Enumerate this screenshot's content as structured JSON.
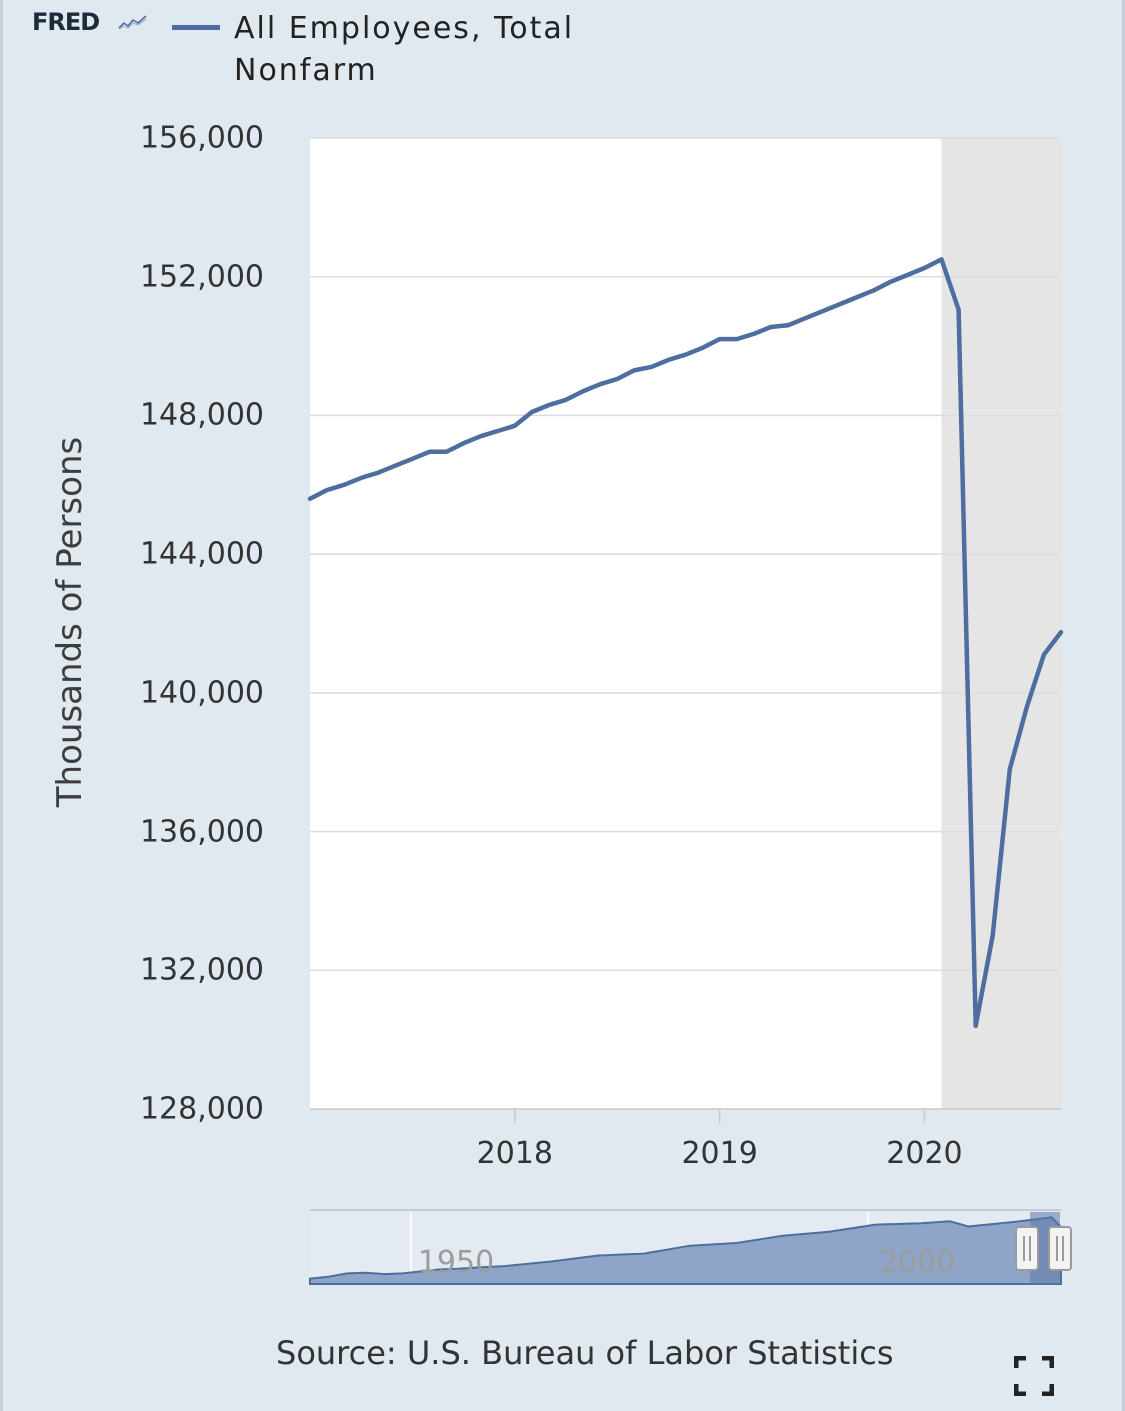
{
  "header": {
    "logo_text": "FRED",
    "legend_line1": "All Employees, Total",
    "legend_line2": "Nonfarm"
  },
  "colors": {
    "series": "#4d6e9e",
    "recession_shade": "#e5e5e5",
    "plot_background": "#ffffff",
    "page_background": "#e1e9f0",
    "navigator_fill": "#8fa5c7"
  },
  "chart_data": {
    "type": "line",
    "xlabel": "",
    "ylabel": "Thousands of Persons",
    "x_tick_labels": [
      "2018",
      "2019",
      "2020"
    ],
    "y_tick_labels": [
      "156,000",
      "152,000",
      "148,000",
      "144,000",
      "140,000",
      "136,000",
      "132,000",
      "128,000"
    ],
    "ylim": [
      128000,
      156000
    ],
    "xlim": [
      "2017-01",
      "2020-09"
    ],
    "grid": true,
    "recession_shading": {
      "start": "2020-02",
      "end": "2020-09"
    },
    "series": [
      {
        "name": "All Employees, Total Nonfarm",
        "x": [
          "2017-01",
          "2017-02",
          "2017-03",
          "2017-04",
          "2017-05",
          "2017-06",
          "2017-07",
          "2017-08",
          "2017-09",
          "2017-10",
          "2017-11",
          "2017-12",
          "2018-01",
          "2018-02",
          "2018-03",
          "2018-04",
          "2018-05",
          "2018-06",
          "2018-07",
          "2018-08",
          "2018-09",
          "2018-10",
          "2018-11",
          "2018-12",
          "2019-01",
          "2019-02",
          "2019-03",
          "2019-04",
          "2019-05",
          "2019-06",
          "2019-07",
          "2019-08",
          "2019-09",
          "2019-10",
          "2019-11",
          "2019-12",
          "2020-01",
          "2020-02",
          "2020-03",
          "2020-04",
          "2020-05",
          "2020-06",
          "2020-07",
          "2020-08",
          "2020-09"
        ],
        "values": [
          145600,
          145850,
          146000,
          146200,
          146350,
          146550,
          146750,
          146950,
          146950,
          147200,
          147400,
          147550,
          147700,
          148100,
          148300,
          148450,
          148700,
          148900,
          149050,
          149300,
          149400,
          149600,
          149750,
          149950,
          150200,
          150200,
          150350,
          150550,
          150600,
          150800,
          151000,
          151200,
          151400,
          151600,
          151850,
          152050,
          152250,
          152500,
          151050,
          130400,
          133000,
          137800,
          139600,
          141100,
          141750
        ]
      }
    ],
    "navigator": {
      "tick_labels": [
        "1950",
        "2000"
      ],
      "range": [
        1939,
        2020
      ]
    }
  },
  "source_text": "Source: U.S. Bureau of Labor Statistics",
  "icons": {
    "fullscreen": "fullscreen-icon",
    "logo_chart": "fred-logo-chart-icon"
  }
}
